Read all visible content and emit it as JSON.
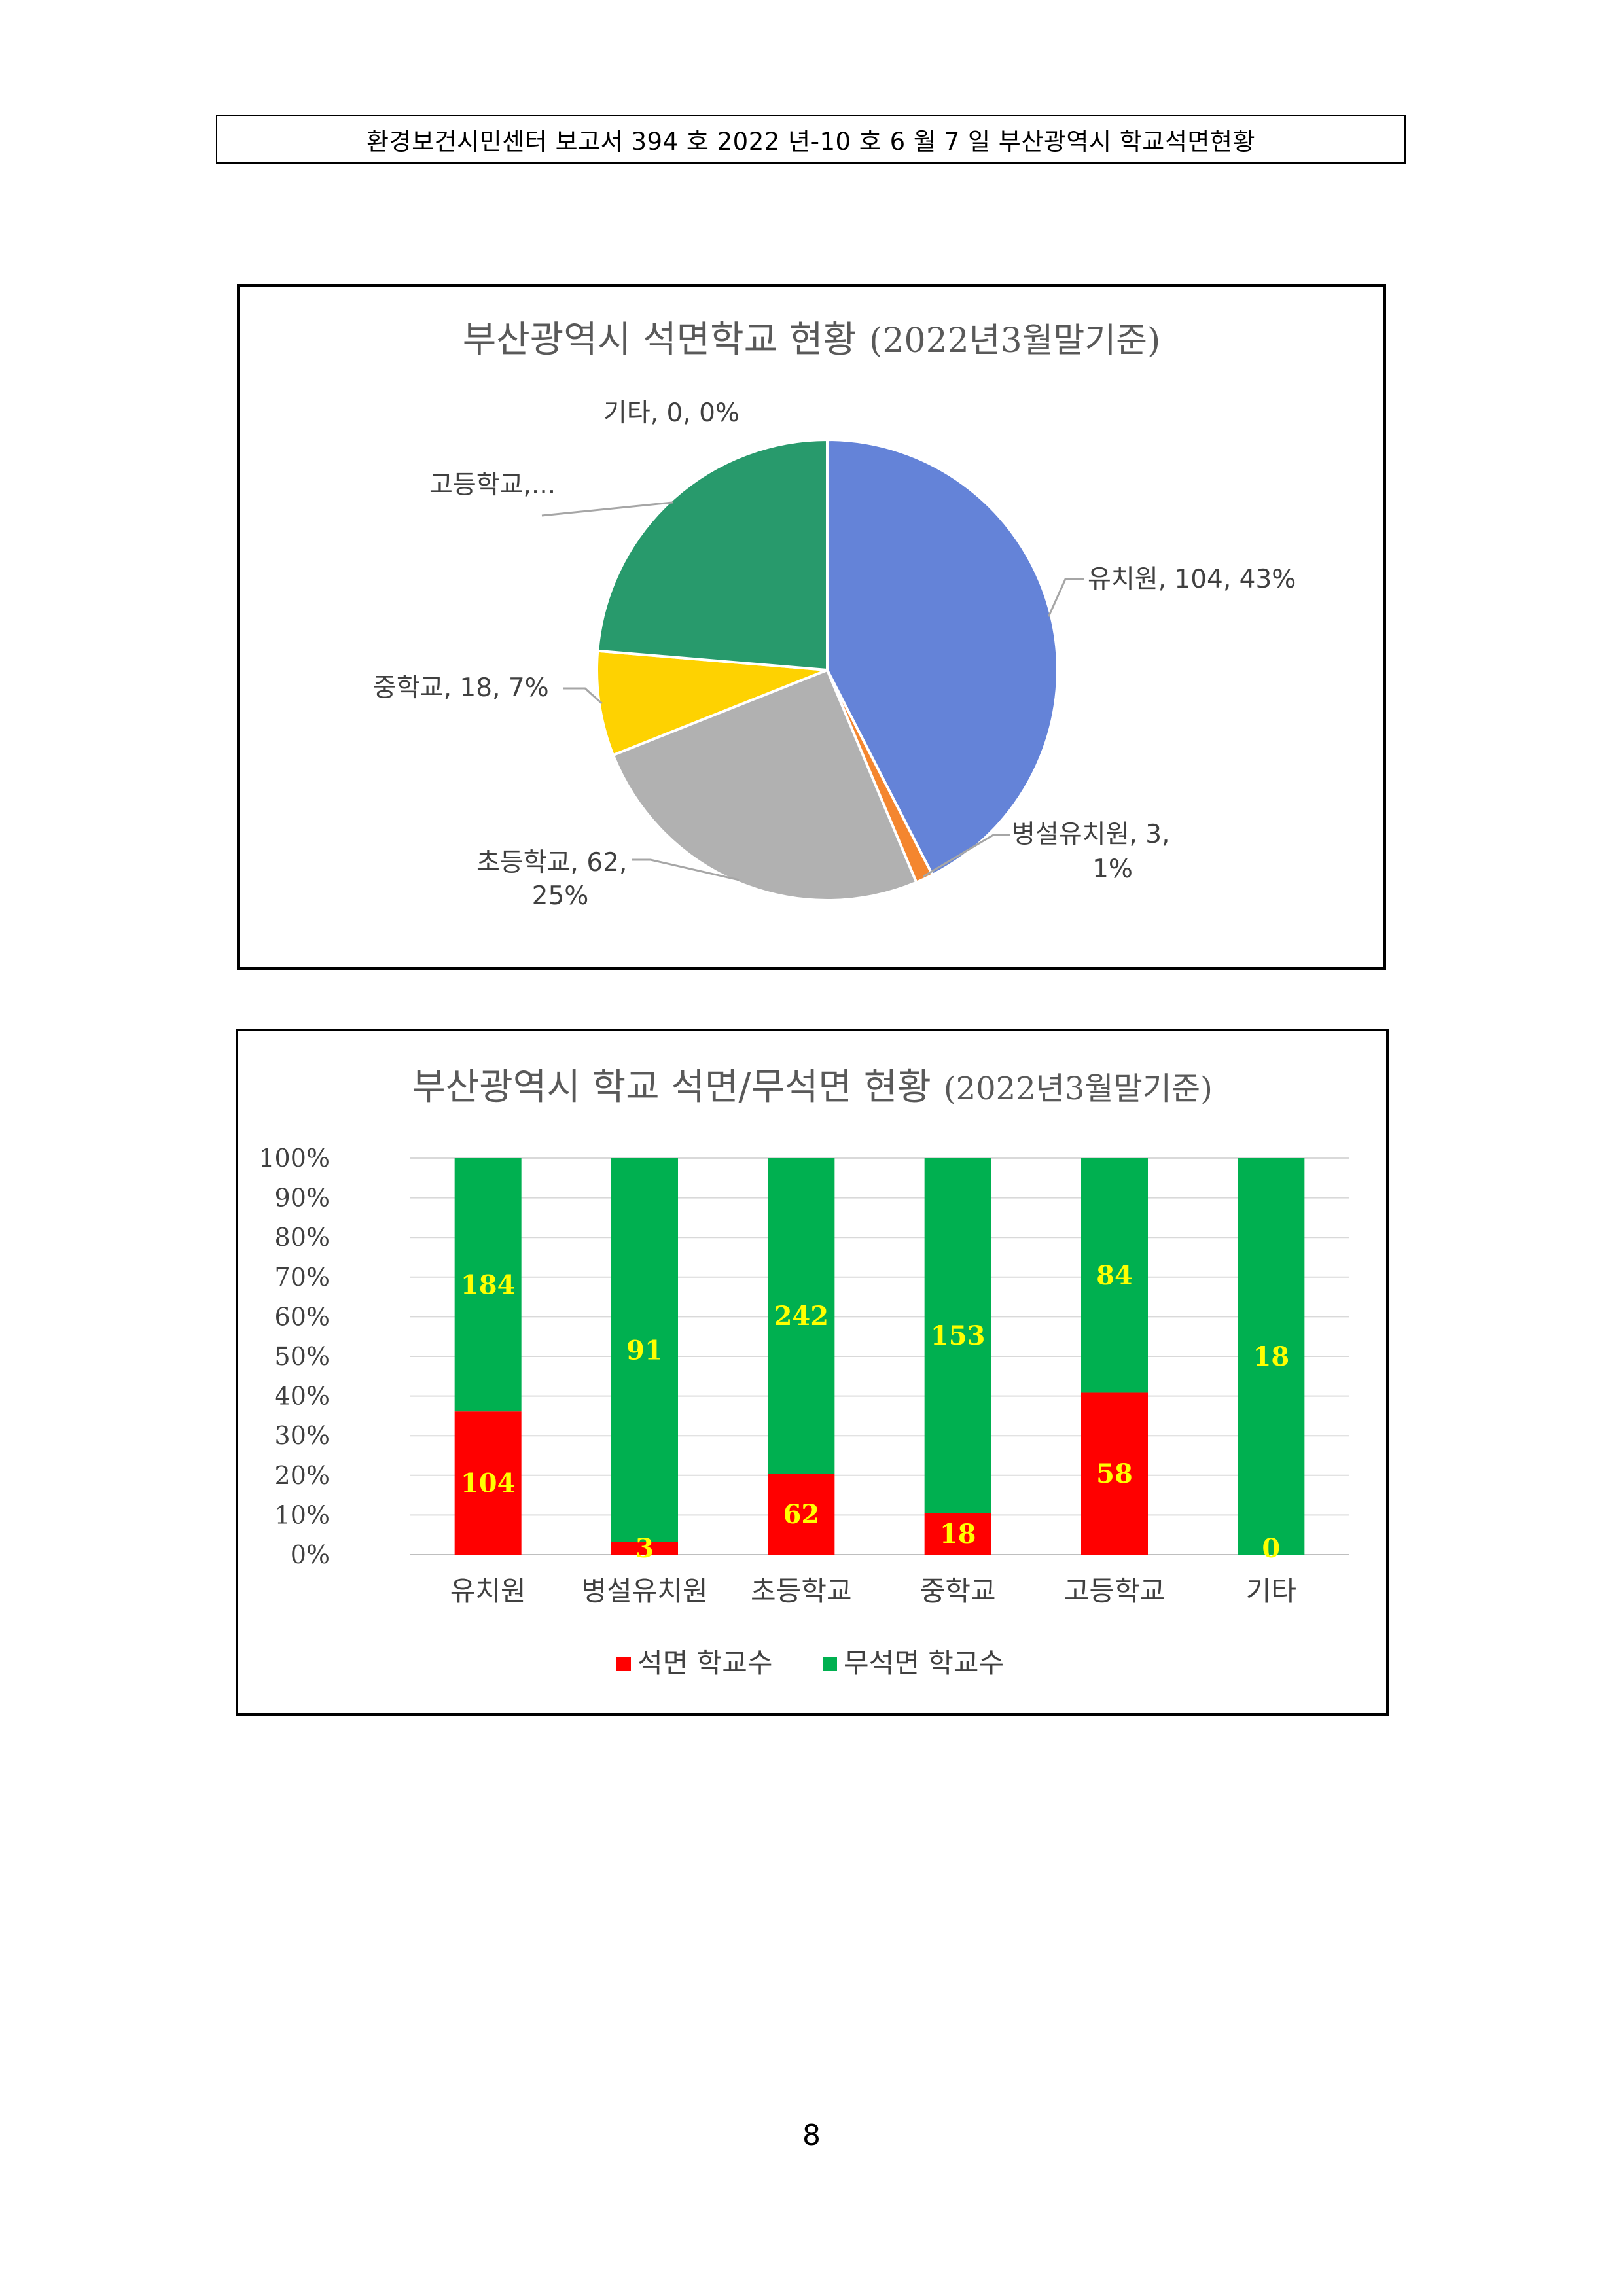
{
  "header": {
    "text": "환경보건시민센터 보고서 394 호 2022 년-10 호 6 월 7 일 부산광역시 학교석면현황"
  },
  "page_number": "8",
  "chart_data": [
    {
      "type": "pie",
      "title": "부산광역시 석면학교 현황",
      "title_suffix": "(2022년3월말기준)",
      "slices": [
        {
          "name": "유치원",
          "value": 104,
          "percent": "43%",
          "label": "유치원, 104, 43%",
          "color": "#6483d8"
        },
        {
          "name": "병설유치원",
          "value": 3,
          "percent": "1%",
          "label_line1": "병설유치원, 3,",
          "label_line2": "1%",
          "color": "#f4862f"
        },
        {
          "name": "초등학교",
          "value": 62,
          "percent": "25%",
          "label_line1": "초등학교, 62,",
          "label_line2": "25%",
          "color": "#b1b1b1"
        },
        {
          "name": "중학교",
          "value": 18,
          "percent": "7%",
          "label": "중학교, 18, 7%",
          "color": "#fed201"
        },
        {
          "name": "고등학교",
          "value": 58,
          "percent": "24%",
          "label": "고등학교,...",
          "color": "#289a6c"
        },
        {
          "name": "기타",
          "value": 0,
          "percent": "0%",
          "label": "기타, 0, 0%",
          "color": "#4472c4"
        }
      ]
    },
    {
      "type": "bar",
      "stacked": "percent",
      "title": "부산광역시 학교 석면/무석면 현황",
      "title_suffix": "(2022년3월말기준)",
      "categories": [
        "유치원",
        "병설유치원",
        "초등학교",
        "중학교",
        "고등학교",
        "기타"
      ],
      "series": [
        {
          "name": "석면 학교수",
          "color": "#ff0000",
          "values": [
            104,
            3,
            62,
            18,
            58,
            0
          ]
        },
        {
          "name": "무석면 학교수",
          "color": "#00b050",
          "values": [
            184,
            91,
            242,
            153,
            84,
            18
          ]
        }
      ],
      "ylim": [
        0,
        100
      ],
      "yticks": [
        "0%",
        "10%",
        "20%",
        "30%",
        "40%",
        "50%",
        "60%",
        "70%",
        "80%",
        "90%",
        "100%"
      ],
      "grid": true,
      "legend": "bottom"
    }
  ]
}
